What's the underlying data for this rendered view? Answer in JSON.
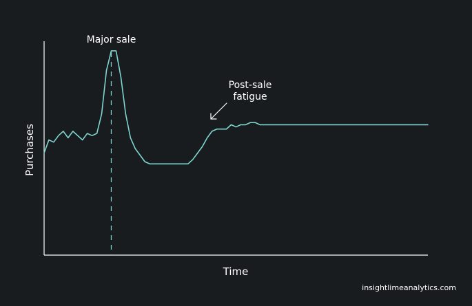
{
  "chart_data": {
    "type": "line",
    "title": "",
    "xlabel": "Time",
    "ylabel": "Purchases",
    "grid": false,
    "legend": "none",
    "line_color": "#7fd6d1",
    "x": [
      0,
      1,
      2,
      3,
      4,
      5,
      6,
      7,
      8,
      9,
      10,
      11,
      12,
      13,
      14,
      15,
      16,
      17,
      18,
      19,
      20,
      21,
      22,
      23,
      24,
      25,
      26,
      27,
      28,
      29,
      30,
      31,
      32,
      33,
      34,
      35,
      36,
      37,
      38,
      39,
      40,
      41,
      42,
      43,
      44,
      45,
      46,
      47,
      48,
      49,
      50,
      51,
      52,
      53,
      54,
      55,
      56,
      57,
      58,
      59,
      60,
      61,
      62,
      63,
      64,
      65,
      66,
      67,
      68,
      69,
      70,
      71,
      72,
      73,
      74,
      75,
      76,
      77,
      78,
      79,
      80
    ],
    "y": [
      47,
      53,
      52,
      55,
      57,
      54,
      57,
      55,
      53,
      56,
      55,
      56,
      65,
      85,
      94,
      94,
      82,
      65,
      54,
      49,
      46,
      43,
      42,
      42,
      42,
      42,
      42,
      42,
      42,
      42,
      42,
      44,
      47,
      50,
      54,
      57,
      58,
      58,
      58,
      60,
      59,
      60,
      60,
      61,
      61,
      60,
      60,
      60,
      60,
      60,
      60,
      60,
      60,
      60,
      60,
      60,
      60,
      60,
      60,
      60,
      60,
      60,
      60,
      60,
      60,
      60,
      60,
      60,
      60,
      60,
      60,
      60,
      60,
      60,
      60,
      60,
      60,
      60,
      60,
      60,
      60
    ],
    "ylim": [
      0,
      100
    ],
    "xlim": [
      0,
      80
    ],
    "annotations": [
      {
        "text": "Major sale",
        "kind": "vertical-dashed-line",
        "x": 14
      },
      {
        "text": "Post-sale\nfatigue",
        "kind": "arrow",
        "x": 18
      }
    ]
  },
  "footer": {
    "brand": "insightlimeanalytics.com"
  }
}
